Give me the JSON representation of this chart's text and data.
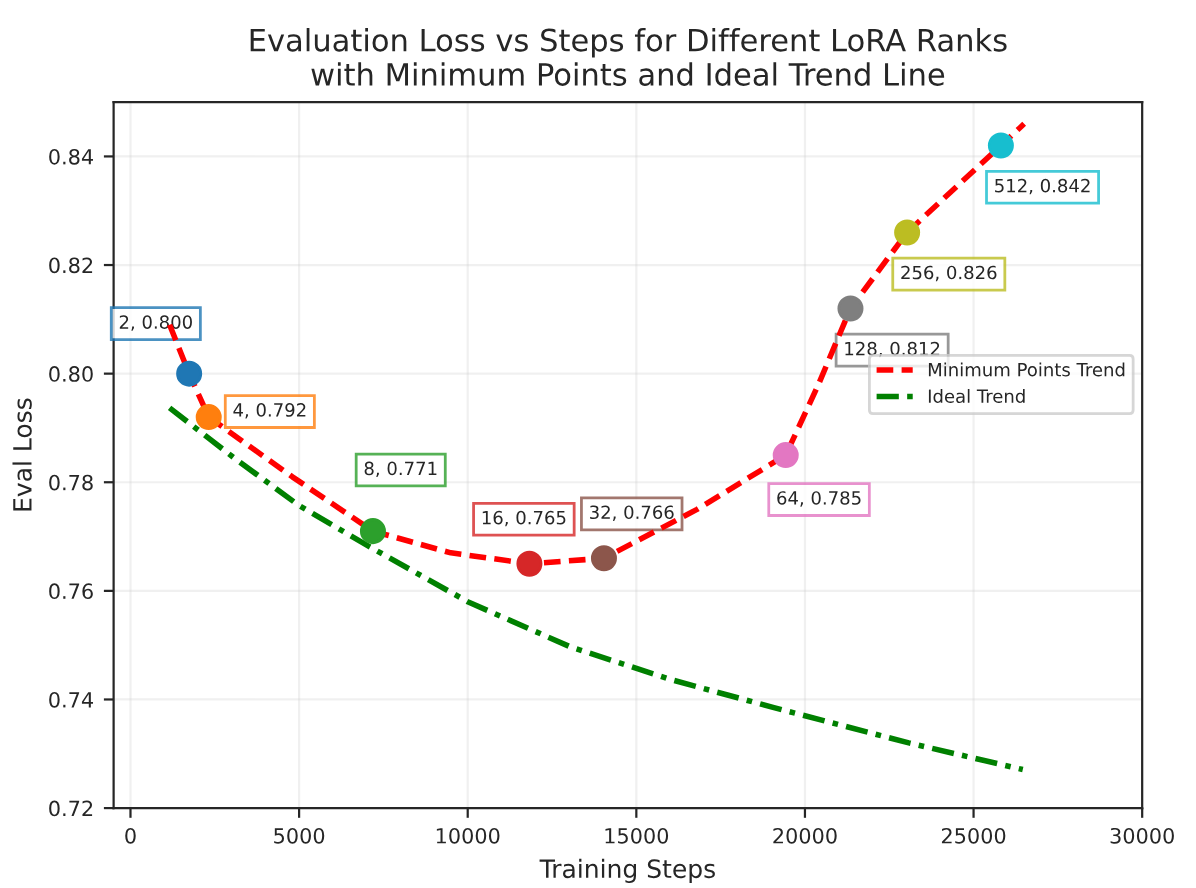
{
  "chart_data": {
    "type": "scatter",
    "title": "Evaluation Loss vs Steps for Different LoRA Ranks\nwith Minimum Points and Ideal Trend Line",
    "xlabel": "Training Steps",
    "ylabel": "Eval Loss",
    "xlim": [
      -500,
      30000
    ],
    "xticks": [
      0,
      5000,
      10000,
      15000,
      20000,
      25000,
      30000
    ],
    "ylim": [
      0.72,
      0.85
    ],
    "yticks": [
      0.72,
      0.74,
      0.76,
      0.78,
      {
        "value": 0.8,
        "label": "0.80"
      },
      0.82,
      0.84
    ],
    "grid": true,
    "legend": "right",
    "series": [
      {
        "marker": "circle",
        "x": [
          1740,
          2320,
          7190,
          11830,
          14040,
          19430,
          21350,
          23030,
          25810
        ],
        "values": [
          0.8,
          0.792,
          0.771,
          0.765,
          0.766,
          0.785,
          0.812,
          0.826,
          0.842
        ],
        "colors": [
          "#1f77b4",
          "#ff7f0e",
          "#2ca02c",
          "#d62728",
          "#8c564b",
          "#e377c2",
          "#7f7f7f",
          "#bcbd22",
          "#17becf"
        ]
      },
      {
        "type": "line",
        "name": "Minimum Points Trend",
        "color": "#ff0000",
        "line_style": "dashed",
        "x": [
          1160,
          1740,
          2320,
          4800,
          7190,
          9500,
          11830,
          14040,
          16800,
          19430,
          20400,
          21350,
          23030,
          25810,
          26500
        ],
        "values": [
          0.809,
          0.8,
          0.792,
          0.781,
          0.771,
          0.767,
          0.765,
          0.766,
          0.775,
          0.785,
          0.798,
          0.812,
          0.826,
          0.842,
          0.846
        ]
      },
      {
        "type": "line",
        "name": "Ideal Trend",
        "color": "#008000",
        "line_style": "dashdot",
        "x": [
          1160,
          3070,
          5000,
          7070,
          10000,
          13040,
          16000,
          19080,
          23080,
          26460
        ],
        "values": [
          0.7937,
          0.7845,
          0.7757,
          0.7682,
          0.758,
          0.7497,
          0.7437,
          0.7385,
          0.732,
          0.7271
        ]
      }
    ],
    "annotations": [
      {
        "text": "2, 0.800",
        "x": 1740,
        "y": 0.8
      },
      {
        "text": "4, 0.792",
        "x": 2320,
        "y": 0.792
      },
      {
        "text": "8, 0.771",
        "x": 7190,
        "y": 0.771
      },
      {
        "text": "16, 0.765",
        "x": 11830,
        "y": 0.765
      },
      {
        "text": "32, 0.766",
        "x": 14040,
        "y": 0.766
      },
      {
        "text": "64, 0.785",
        "x": 19430,
        "y": 0.785
      },
      {
        "text": "128, 0.812",
        "x": 21350,
        "y": 0.812
      },
      {
        "text": "256, 0.826",
        "x": 23030,
        "y": 0.826
      },
      {
        "text": "512, 0.842",
        "x": 25810,
        "y": 0.842
      }
    ]
  }
}
